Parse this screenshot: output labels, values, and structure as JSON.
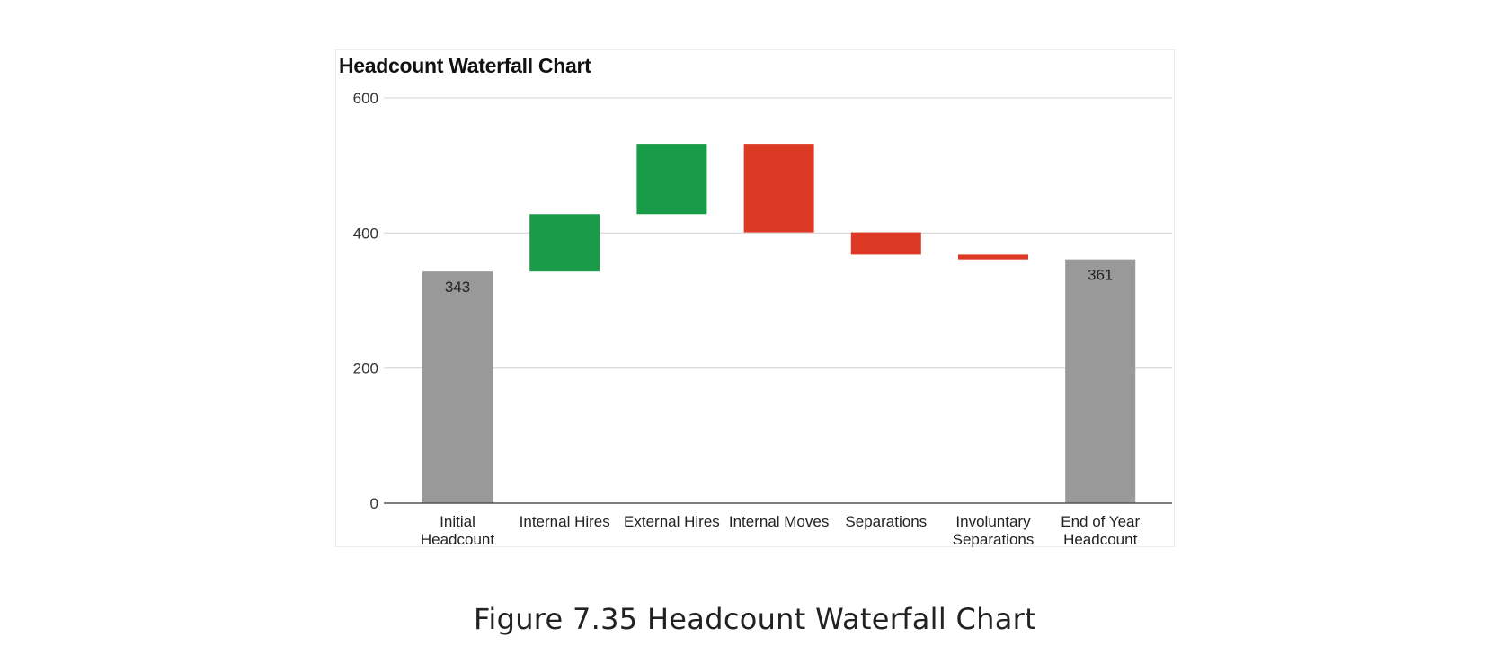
{
  "chart_data": {
    "type": "bar",
    "subtype": "waterfall",
    "title": "Headcount Waterfall Chart",
    "xlabel": "",
    "ylabel": "",
    "ylim": [
      0,
      600
    ],
    "yticks": [
      0,
      200,
      400,
      600
    ],
    "grid": true,
    "legend": "none",
    "categories": [
      [
        "Initial",
        "Headcount"
      ],
      [
        "Internal Hires"
      ],
      [
        "External Hires"
      ],
      [
        "Internal Moves"
      ],
      [
        "Separations"
      ],
      [
        "Involuntary",
        "Separations"
      ],
      [
        "End of Year",
        "Headcount"
      ]
    ],
    "bars": [
      {
        "kind": "total",
        "start": 0,
        "end": 343,
        "label": "343"
      },
      {
        "kind": "increase",
        "start": 343,
        "end": 428
      },
      {
        "kind": "increase",
        "start": 428,
        "end": 532
      },
      {
        "kind": "decrease",
        "start": 532,
        "end": 401
      },
      {
        "kind": "decrease",
        "start": 401,
        "end": 368
      },
      {
        "kind": "decrease",
        "start": 368,
        "end": 361
      },
      {
        "kind": "total",
        "start": 0,
        "end": 361,
        "label": "361"
      }
    ],
    "colors": {
      "total": "#999999",
      "increase": "#189c47",
      "decrease": "#dd3a26",
      "grid": "#dddddd",
      "axis": "#555555"
    }
  },
  "caption": "Figure 7.35 Headcount Waterfall Chart"
}
